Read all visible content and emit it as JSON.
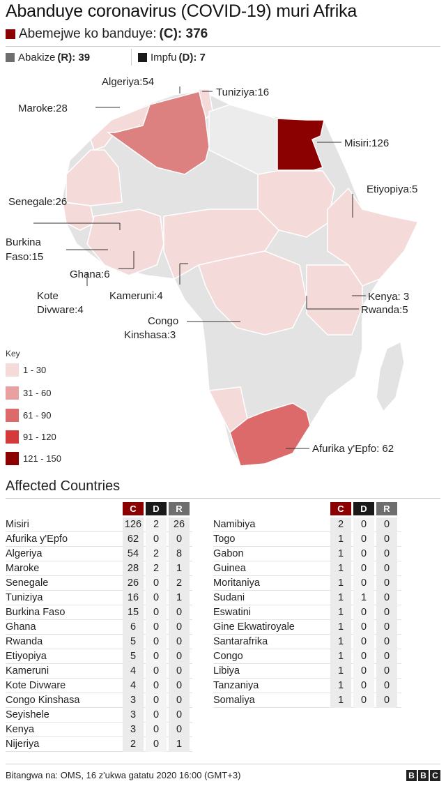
{
  "title": "Abanduye coronavirus (COVID-19) muri Afrika",
  "stats": {
    "cases_label": "Abemejwe ko banduye: ",
    "cases_code": "(C): 376",
    "recovered_label": "Abakize ",
    "recovered_code": "(R): 39",
    "deaths_label": "Impfu ",
    "deaths_code": "(D): 7"
  },
  "colors": {
    "cases": "#8b0000",
    "deaths": "#1a1a1a",
    "recovered": "#6e6e6e",
    "scale": [
      "#f5dada",
      "#e8a0a0",
      "#dc6a6a",
      "#d43a3a",
      "#8b0000"
    ],
    "no_data": "#e3e3e3"
  },
  "map_labels": {
    "algeria": "Algeriya:54",
    "tunisia": "Tuniziya:16",
    "morocco": "Maroke:28",
    "egypt": "Misiri:126",
    "ethiopia": "Etiyopiya:5",
    "senegal": "Senegale:26",
    "burkina_1": "Burkina",
    "burkina_2": "Faso:15",
    "ghana": "Ghana:6",
    "cameroon": "Kameruni:4",
    "ivory_1": "Kote",
    "ivory_2": "Divware:4",
    "congo_1": "Congo",
    "congo_2": "Kinshasa:3",
    "kenya": "Kenya: 3",
    "rwanda": "Rwanda:5",
    "south_africa": "Afurika y'Epfo: 62"
  },
  "key": {
    "title": "Key",
    "items": [
      "1 - 30",
      "31 - 60",
      "61 - 90",
      "91 - 120",
      "121 - 150"
    ]
  },
  "affected": {
    "title": "Affected Countries",
    "headers": [
      "C",
      "D",
      "R"
    ],
    "left": [
      {
        "name": "Misiri",
        "c": "126",
        "d": "2",
        "r": "26"
      },
      {
        "name": "Afurika y'Epfo",
        "c": "62",
        "d": "0",
        "r": "0"
      },
      {
        "name": "Algeriya",
        "c": "54",
        "d": "2",
        "r": "8"
      },
      {
        "name": "Maroke",
        "c": "28",
        "d": "2",
        "r": "1"
      },
      {
        "name": "Senegale",
        "c": "26",
        "d": "0",
        "r": "2"
      },
      {
        "name": "Tuniziya",
        "c": "16",
        "d": "0",
        "r": "1"
      },
      {
        "name": "Burkina Faso",
        "c": "15",
        "d": "0",
        "r": "0"
      },
      {
        "name": "Ghana",
        "c": "6",
        "d": "0",
        "r": "0"
      },
      {
        "name": "Rwanda",
        "c": "5",
        "d": "0",
        "r": "0"
      },
      {
        "name": "Etiyopiya",
        "c": "5",
        "d": "0",
        "r": "0"
      },
      {
        "name": "Kameruni",
        "c": "4",
        "d": "0",
        "r": "0"
      },
      {
        "name": "Kote Divware",
        "c": "4",
        "d": "0",
        "r": "0"
      },
      {
        "name": "Congo Kinshasa",
        "c": "3",
        "d": "0",
        "r": "0"
      },
      {
        "name": "Seyishele",
        "c": "3",
        "d": "0",
        "r": "0"
      },
      {
        "name": "Kenya",
        "c": "3",
        "d": "0",
        "r": "0"
      },
      {
        "name": "Nijeriya",
        "c": "2",
        "d": "0",
        "r": "1"
      }
    ],
    "right": [
      {
        "name": "Namibiya",
        "c": "2",
        "d": "0",
        "r": "0"
      },
      {
        "name": "Togo",
        "c": "1",
        "d": "0",
        "r": "0"
      },
      {
        "name": "Gabon",
        "c": "1",
        "d": "0",
        "r": "0"
      },
      {
        "name": "Guinea",
        "c": "1",
        "d": "0",
        "r": "0"
      },
      {
        "name": "Moritaniya",
        "c": "1",
        "d": "0",
        "r": "0"
      },
      {
        "name": "Sudani",
        "c": "1",
        "d": "1",
        "r": "0"
      },
      {
        "name": "Eswatini",
        "c": "1",
        "d": "0",
        "r": "0"
      },
      {
        "name": "Gine Ekwatiroyale",
        "c": "1",
        "d": "0",
        "r": "0"
      },
      {
        "name": "Santarafrika",
        "c": "1",
        "d": "0",
        "r": "0"
      },
      {
        "name": "Congo",
        "c": "1",
        "d": "0",
        "r": "0"
      },
      {
        "name": "Libiya",
        "c": "1",
        "d": "0",
        "r": "0"
      },
      {
        "name": "Tanzaniya",
        "c": "1",
        "d": "0",
        "r": "0"
      },
      {
        "name": "Somaliya",
        "c": "1",
        "d": "0",
        "r": "0"
      }
    ]
  },
  "source": "Bitangwa na: OMS, 16 z'ukwa gatatu 2020  16:00 (GMT+3)",
  "logo": [
    "B",
    "B",
    "C"
  ]
}
